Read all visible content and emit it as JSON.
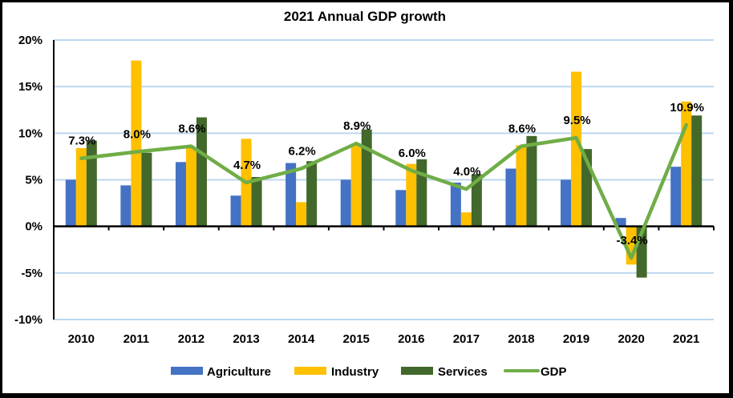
{
  "chart_data": {
    "type": "bar",
    "title": "2021 Annual GDP growth",
    "xlabel": "",
    "ylabel": "",
    "categories": [
      "2010",
      "2011",
      "2012",
      "2013",
      "2014",
      "2015",
      "2016",
      "2017",
      "2018",
      "2019",
      "2020",
      "2021"
    ],
    "ylim": [
      -10,
      20
    ],
    "yticks": [
      -10,
      -5,
      0,
      5,
      10,
      15,
      20
    ],
    "ytick_labels": [
      "-10%",
      "-5%",
      "0%",
      "5%",
      "10%",
      "15%",
      "20%"
    ],
    "grid": true,
    "legend_position": "bottom",
    "series": [
      {
        "name": "Agriculture",
        "type": "bar",
        "color": "#4472C4",
        "values": [
          5.0,
          4.4,
          6.9,
          3.3,
          6.8,
          5.0,
          3.9,
          4.7,
          6.2,
          5.0,
          0.9,
          6.4
        ]
      },
      {
        "name": "Industry",
        "type": "bar",
        "color": "#FFC000",
        "values": [
          8.4,
          17.8,
          8.4,
          9.4,
          2.6,
          8.8,
          6.7,
          1.5,
          8.7,
          16.6,
          -4.1,
          13.4
        ]
      },
      {
        "name": "Services",
        "type": "bar",
        "color": "#43682B",
        "values": [
          9.2,
          7.9,
          11.7,
          5.3,
          7.0,
          10.4,
          7.2,
          5.6,
          9.7,
          8.3,
          -5.5,
          11.9
        ]
      },
      {
        "name": "GDP",
        "type": "line",
        "color": "#70AD47",
        "values": [
          7.3,
          8.0,
          8.6,
          4.7,
          6.2,
          8.9,
          6.0,
          4.0,
          8.6,
          9.5,
          -3.4,
          10.9
        ],
        "data_labels": [
          "7.3%",
          "8.0%",
          "8.6%",
          "4.7%",
          "6.2%",
          "8.9%",
          "6.0%",
          "4.0%",
          "8.6%",
          "9.5%",
          "-3.4%",
          "10.9%"
        ]
      }
    ]
  }
}
